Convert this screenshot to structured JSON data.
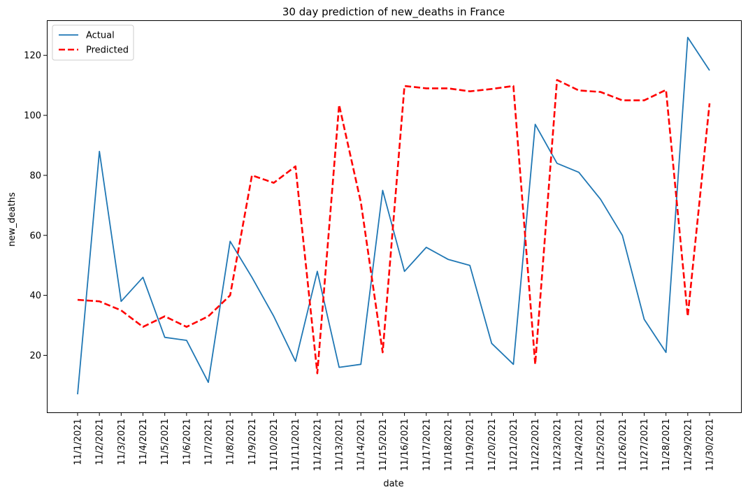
{
  "chart_data": {
    "type": "line",
    "title": "30 day prediction of new_deaths in France",
    "xlabel": "date",
    "ylabel": "new_deaths",
    "categories": [
      "11/1/2021",
      "11/2/2021",
      "11/3/2021",
      "11/4/2021",
      "11/5/2021",
      "11/6/2021",
      "11/7/2021",
      "11/8/2021",
      "11/9/2021",
      "11/10/2021",
      "11/11/2021",
      "11/12/2021",
      "11/13/2021",
      "11/14/2021",
      "11/15/2021",
      "11/16/2021",
      "11/17/2021",
      "11/18/2021",
      "11/19/2021",
      "11/20/2021",
      "11/21/2021",
      "11/22/2021",
      "11/23/2021",
      "11/24/2021",
      "11/25/2021",
      "11/26/2021",
      "11/27/2021",
      "11/28/2021",
      "11/29/2021",
      "11/30/2021"
    ],
    "ylim": [
      1,
      131.7
    ],
    "yticks": [
      20,
      40,
      60,
      80,
      100,
      120
    ],
    "grid": false,
    "legend": "top-left",
    "series": [
      {
        "name": "Actual",
        "color": "#1f77b4",
        "style": "solid",
        "values": [
          7,
          88,
          38,
          46,
          26,
          25,
          11,
          58,
          46,
          33,
          18,
          48,
          16,
          17,
          75,
          48,
          56,
          52,
          50,
          24,
          17,
          97,
          84,
          81,
          72,
          60,
          32,
          21,
          126,
          115
        ]
      },
      {
        "name": "Predicted",
        "color": "#ff0000",
        "style": "dashed",
        "values": [
          38.5,
          38,
          35,
          29.5,
          33,
          29.5,
          33,
          40,
          80,
          77.5,
          83,
          14,
          103.5,
          71,
          21,
          109.8,
          109,
          109,
          108,
          108.8,
          109.8,
          17,
          111.8,
          108.3,
          107.8,
          105,
          105,
          108.5,
          33,
          104
        ]
      }
    ]
  }
}
